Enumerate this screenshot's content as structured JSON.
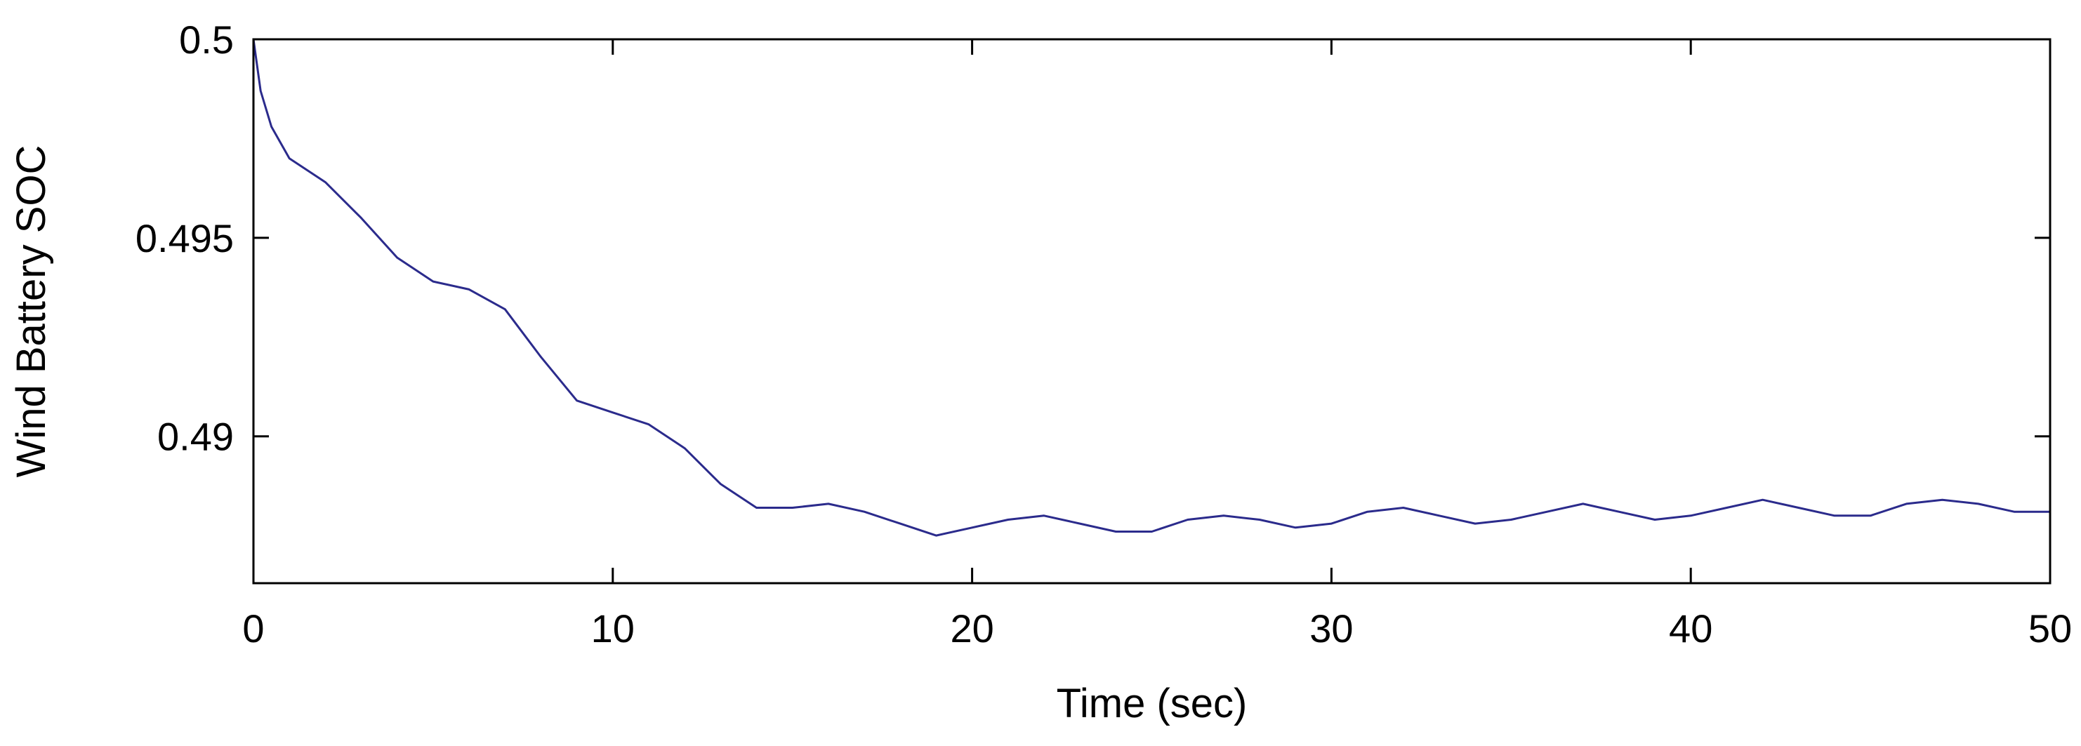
{
  "chart_data": {
    "type": "line",
    "title": "",
    "xlabel": "Time (sec)",
    "ylabel": "Wind Battery SOC",
    "xlim": [
      0,
      50
    ],
    "ylim": [
      0.4863,
      0.5
    ],
    "grid": false,
    "legend": "none",
    "xticks": [
      {
        "value": 0,
        "label": "0"
      },
      {
        "value": 10,
        "label": "10"
      },
      {
        "value": 20,
        "label": "20"
      },
      {
        "value": 30,
        "label": "30"
      },
      {
        "value": 40,
        "label": "40"
      },
      {
        "value": 50,
        "label": "50"
      }
    ],
    "yticks": [
      {
        "value": 0.49,
        "label": "0.49"
      },
      {
        "value": 0.495,
        "label": "0.495"
      },
      {
        "value": 0.5,
        "label": "0.5"
      }
    ],
    "series": [
      {
        "color": "#2b2b8c",
        "x": [
          0,
          0.2,
          0.5,
          1,
          2,
          3,
          4,
          5,
          6,
          7,
          8,
          9,
          10,
          11,
          12,
          13,
          14,
          15,
          16,
          17,
          18,
          19,
          20,
          21,
          22,
          23,
          24,
          25,
          26,
          27,
          28,
          29,
          30,
          31,
          32,
          33,
          34,
          35,
          36,
          37,
          38,
          39,
          40,
          41,
          42,
          43,
          44,
          45,
          46,
          47,
          48,
          49,
          50
        ],
        "y": [
          0.5,
          0.4987,
          0.4978,
          0.497,
          0.4964,
          0.4955,
          0.4945,
          0.4939,
          0.4937,
          0.4932,
          0.492,
          0.4909,
          0.4906,
          0.4903,
          0.4897,
          0.4888,
          0.4882,
          0.4882,
          0.4883,
          0.4881,
          0.4878,
          0.4875,
          0.4877,
          0.4879,
          0.488,
          0.4878,
          0.4876,
          0.4876,
          0.4879,
          0.488,
          0.4879,
          0.4877,
          0.4878,
          0.4881,
          0.4882,
          0.488,
          0.4878,
          0.4879,
          0.4881,
          0.4883,
          0.4881,
          0.4879,
          0.488,
          0.4882,
          0.4884,
          0.4882,
          0.488,
          0.488,
          0.4883,
          0.4884,
          0.4883,
          0.4881,
          0.4881
        ]
      }
    ]
  }
}
